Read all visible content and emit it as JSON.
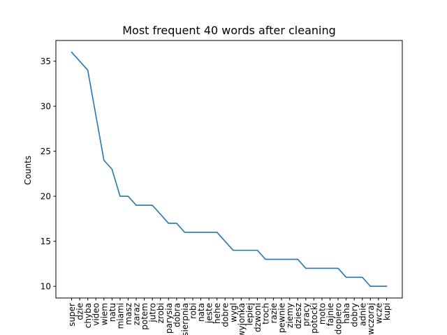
{
  "chart_data": {
    "type": "line",
    "title": "Most frequent 40 words after cleaning",
    "xlabel": "",
    "ylabel": "Counts",
    "ylim": [
      8.7,
      37.3
    ],
    "yticks": [
      10,
      15,
      20,
      25,
      30,
      35
    ],
    "grid": false,
    "series": [
      {
        "name": "Counts",
        "color": "#1f77b4",
        "categories": [
          "super",
          "dzie",
          "chyba",
          "video",
          "wiem",
          "natu",
          "miami",
          "masz",
          "zaraz",
          "potem",
          "jutro",
          "zrobi",
          "parysia",
          "dobra",
          "sierpnia",
          "robi",
          "nata",
          "jeste",
          "hehe",
          "dobre",
          "wygl",
          "wyjonka",
          "lepiej",
          "dzwoni",
          "troch",
          "razie",
          "pewnie",
          "ziemy",
          "dziesz",
          "pracy",
          "potocki",
          "moto",
          "fajnie",
          "dopiero",
          "haha",
          "dobry",
          "adnie",
          "wczoraj",
          "wcze",
          "kupi"
        ],
        "values": [
          36,
          35,
          34,
          29,
          24,
          23,
          20,
          20,
          19,
          19,
          19,
          18,
          17,
          17,
          16,
          16,
          16,
          16,
          16,
          15,
          14,
          14,
          14,
          14,
          13,
          13,
          13,
          13,
          13,
          12,
          12,
          12,
          12,
          12,
          11,
          11,
          11,
          10,
          10,
          10
        ]
      }
    ]
  }
}
